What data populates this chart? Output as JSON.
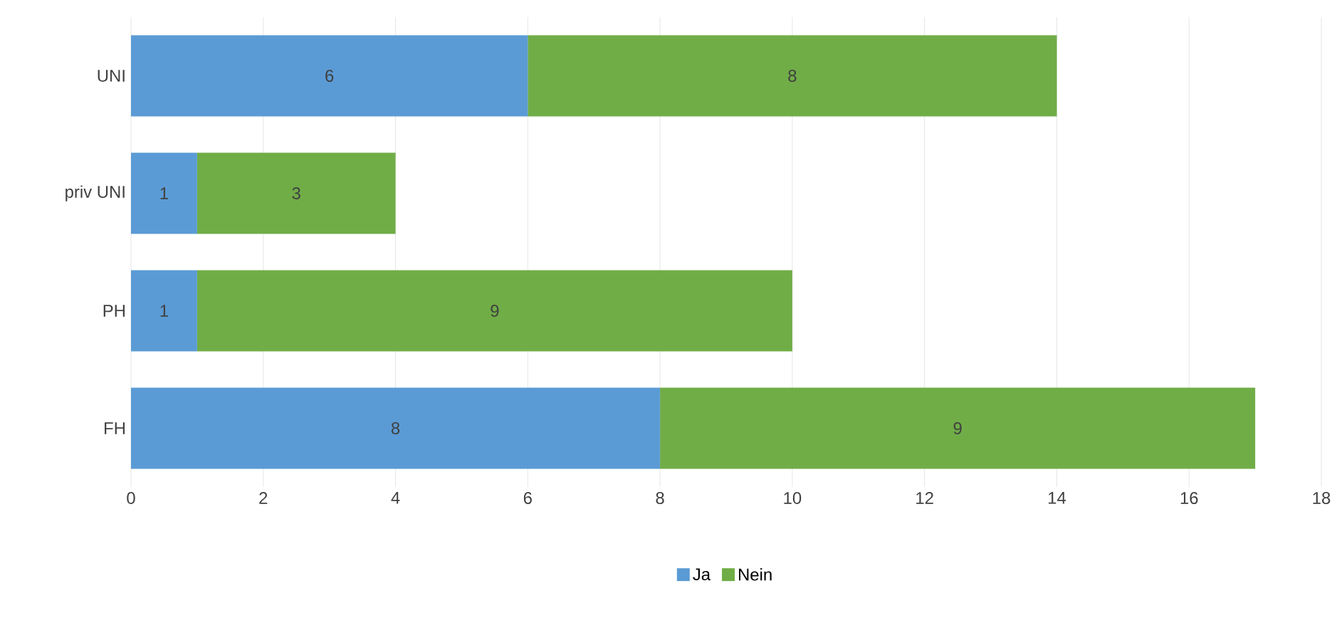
{
  "chart_data": {
    "type": "bar",
    "orientation": "horizontal",
    "stacked": true,
    "categories": [
      "UNI",
      "priv UNI",
      "PH",
      "FH"
    ],
    "series": [
      {
        "name": "Ja",
        "color": "#5b9bd5",
        "values": [
          6,
          1,
          1,
          8
        ]
      },
      {
        "name": "Nein",
        "color": "#70ad47",
        "values": [
          8,
          3,
          9,
          9
        ]
      }
    ],
    "xlim": [
      0,
      18
    ],
    "xticks": [
      0,
      2,
      4,
      6,
      8,
      10,
      12,
      14,
      16,
      18
    ],
    "grid": "x",
    "legend": "bottom",
    "data_labels": true
  }
}
